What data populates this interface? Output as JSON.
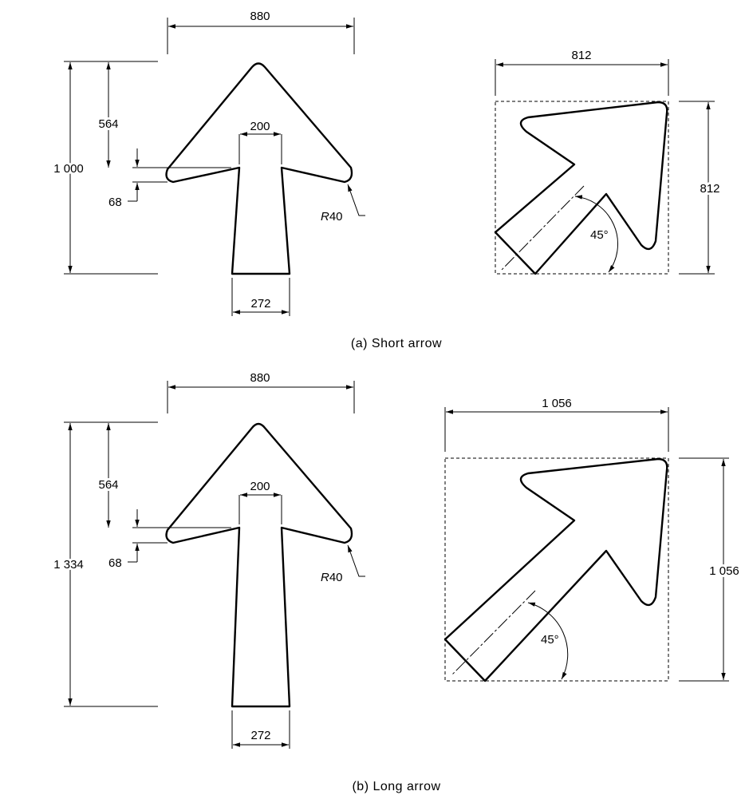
{
  "diagram_a": {
    "width": "880",
    "height": "1 000",
    "head_depth": "564",
    "neck_width": "200",
    "barb_offset": "68",
    "tail_width": "272",
    "radius_prefix": "R",
    "radius_value": "40",
    "box_width": "812",
    "box_height": "812",
    "angle": "45°",
    "caption": "(a) Short arrow"
  },
  "diagram_b": {
    "width": "880",
    "height": "1 334",
    "head_depth": "564",
    "neck_width": "200",
    "barb_offset": "68",
    "tail_width": "272",
    "radius_prefix": "R",
    "radius_value": "40",
    "box_width": "1 056",
    "box_height": "1 056",
    "angle": "45°",
    "caption": "(b) Long arrow"
  }
}
